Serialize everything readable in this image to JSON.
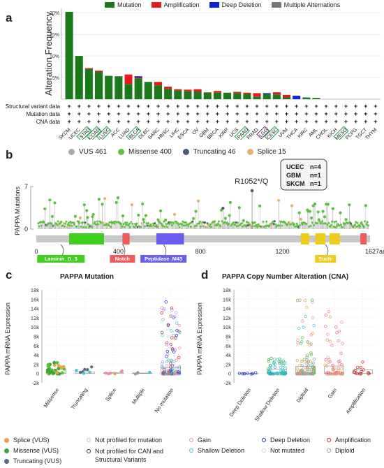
{
  "panel_a": {
    "letter": "a",
    "legend": [
      {
        "label": "Mutation",
        "color": "#1a7a1a"
      },
      {
        "label": "Amplification",
        "color": "#e41a1c"
      },
      {
        "label": "Deep Deletion",
        "color": "#0b24d6"
      },
      {
        "label": "Multiple Alternations",
        "color": "#777777"
      }
    ],
    "row_labels": [
      "Structural variant data",
      "Mutation data",
      "CNA data"
    ],
    "boxed_colors": {
      "green": "#1a9b4a",
      "purple": "#6a2c7a"
    }
  },
  "panel_b": {
    "letter": "b",
    "legend": [
      {
        "label": "VUS 461",
        "color": "#a8a8a8"
      },
      {
        "label": "Missense 400",
        "color": "#5cc13c"
      },
      {
        "label": "Truncating 46",
        "color": "#4a5a73"
      },
      {
        "label": "Splice 15",
        "color": "#e8b06e"
      }
    ],
    "ylabel": "PAPPA Mutations",
    "ytick_top": "7",
    "ytick_zero": "0",
    "annotation": "R1052*/Q",
    "box_lines": [
      {
        "name": "UCEC",
        "n": "n=4"
      },
      {
        "name": "GBM",
        "n": "n=1"
      },
      {
        "name": "SKCM",
        "n": "n=1"
      }
    ],
    "axis_ticks": [
      "0",
      "400",
      "800",
      "1200",
      "1627aa"
    ],
    "domains": [
      {
        "label": "Laminin_G_3",
        "color": "#3fcf1f"
      },
      {
        "label": "Notch",
        "color": "#f05a5a"
      },
      {
        "label": "Peptidase_M43",
        "color": "#6a5ef0"
      },
      {
        "label": "Suchi",
        "color": "#f0cc1a"
      }
    ]
  },
  "panel_c": {
    "letter": "c",
    "title": "PAPPA Mutation",
    "ylabel": "PAPPA mRNA Expression",
    "yticks": [
      "18k",
      "16k",
      "14k",
      "12k",
      "10k",
      "8k",
      "6k",
      "4k",
      "2k",
      "0",
      "-2k"
    ],
    "categories": [
      "Missense",
      "Truncating",
      "Splice",
      "Multiple",
      "No mutation"
    ]
  },
  "panel_d": {
    "letter": "d",
    "title": "PAPPA Copy Number Alteration (CNA)",
    "ylabel": "PAPPA mRNA Expression",
    "yticks": [
      "18k",
      "16k",
      "14k",
      "12k",
      "10k",
      "8k",
      "6k",
      "4k",
      "2k",
      "0",
      "-2k"
    ],
    "categories": [
      "Deep Deletion",
      "Shallow Deletion",
      "Diploid",
      "Gain",
      "Amplification"
    ]
  },
  "bottom_legend": {
    "col1": [
      {
        "label": "Splice (VUS)",
        "color": "#e8a34a"
      },
      {
        "label": "Missense (VUS)",
        "color": "#3aa63a"
      },
      {
        "label": "Truncating (VUS)",
        "color": "#5a6a86"
      }
    ],
    "col2": [
      {
        "label": "Not profiled for mutation",
        "color": "#bbbbbb"
      },
      {
        "label": "Not profiled for CAN and Structural Variants",
        "color": "#333333"
      }
    ],
    "col3": [
      {
        "label": "Gain",
        "color": "#f08aa0"
      },
      {
        "label": "Shallow Deletion",
        "color": "#3ac8d6"
      }
    ],
    "col4": [
      {
        "label": "Deep Deletion",
        "color": "#2233cc"
      },
      {
        "label": "Not mutated",
        "color": "#c8d8e0"
      }
    ],
    "col5": [
      {
        "label": "Amplification",
        "color": "#c22a2a"
      },
      {
        "label": "Diploid",
        "color": "#999999"
      }
    ]
  },
  "chart_data": [
    {
      "type": "bar",
      "title": "",
      "ylabel": "Alteration Frequency",
      "xlabel": "",
      "yticks": [
        "20%",
        "15%",
        "10%",
        "5%"
      ],
      "ylim": [
        0,
        21
      ],
      "categories": [
        "SKCM",
        "UCEC",
        "STAD",
        "COAD",
        "LUSC",
        "ACC",
        "LUAD",
        "BLCA",
        "DLBC",
        "SARC",
        "HNSC",
        "LIHC",
        "ESCA",
        "OV",
        "GBM",
        "BRCA",
        "KIRP",
        "UCS",
        "PAAD",
        "PRAD",
        "LGG",
        "CESC",
        "UVM",
        "THCA",
        "KIRC",
        "AML",
        "CHOL",
        "KICH",
        "MESO",
        "PCPG",
        "TGCT",
        "THYM"
      ],
      "boxed_green": [
        "STAD",
        "COAD",
        "LUSC",
        "BLCA",
        "PAAD",
        "CESC",
        "MESO"
      ],
      "boxed_purple": [
        "LGG"
      ],
      "series": [
        {
          "name": "Mutation",
          "values": [
            20.2,
            10.0,
            7.0,
            6.3,
            5.4,
            5.3,
            3.5,
            4.8,
            4.0,
            3.2,
            2.4,
            2.0,
            1.8,
            1.7,
            1.5,
            1.5,
            1.5,
            1.4,
            1.2,
            0.6,
            1.2,
            1.1,
            0.4,
            0,
            0.4,
            0.3,
            0,
            0,
            0,
            0,
            0,
            0
          ]
        },
        {
          "name": "Amplification",
          "values": [
            0,
            0,
            0.2,
            0.3,
            0,
            0,
            2.2,
            0.2,
            0,
            0.8,
            0.5,
            0.3,
            0.4,
            0.6,
            0.1,
            0.4,
            0,
            0.3,
            0.3,
            0.8,
            0,
            0.5,
            0.6,
            0,
            0,
            0,
            0,
            0,
            0,
            0,
            0,
            0
          ]
        },
        {
          "name": "Deep Deletion",
          "values": [
            0,
            0,
            0,
            0,
            0,
            0,
            0,
            0.3,
            0,
            0,
            0,
            0,
            0,
            0,
            0,
            0,
            0,
            0,
            0,
            0,
            0.2,
            0,
            0,
            0.8,
            0,
            0,
            0,
            0,
            0,
            0,
            0,
            0
          ]
        },
        {
          "name": "Multiple Alternations",
          "values": [
            0,
            0,
            0,
            0,
            0,
            0,
            0,
            0,
            0,
            0,
            0,
            0,
            0,
            0,
            0,
            0,
            0,
            0,
            0,
            0,
            0,
            0,
            0,
            0,
            0,
            0,
            0,
            0,
            0,
            0,
            0,
            0
          ]
        }
      ]
    },
    {
      "type": "scatter",
      "ylabel": "PAPPA mRNA Expression",
      "categories": [
        "Missense",
        "Truncating",
        "Splice",
        "Multiple",
        "No mutation"
      ],
      "ylim": [
        -2000,
        18000
      ],
      "approx_max": [
        2500,
        1500,
        600,
        300,
        16000
      ]
    },
    {
      "type": "scatter",
      "ylabel": "PAPPA mRNA Expression",
      "categories": [
        "Deep Deletion",
        "Shallow Deletion",
        "Diploid",
        "Gain",
        "Amplification"
      ],
      "ylim": [
        -2000,
        18000
      ],
      "approx_max": [
        200,
        3500,
        16000,
        13500,
        3500
      ]
    }
  ]
}
